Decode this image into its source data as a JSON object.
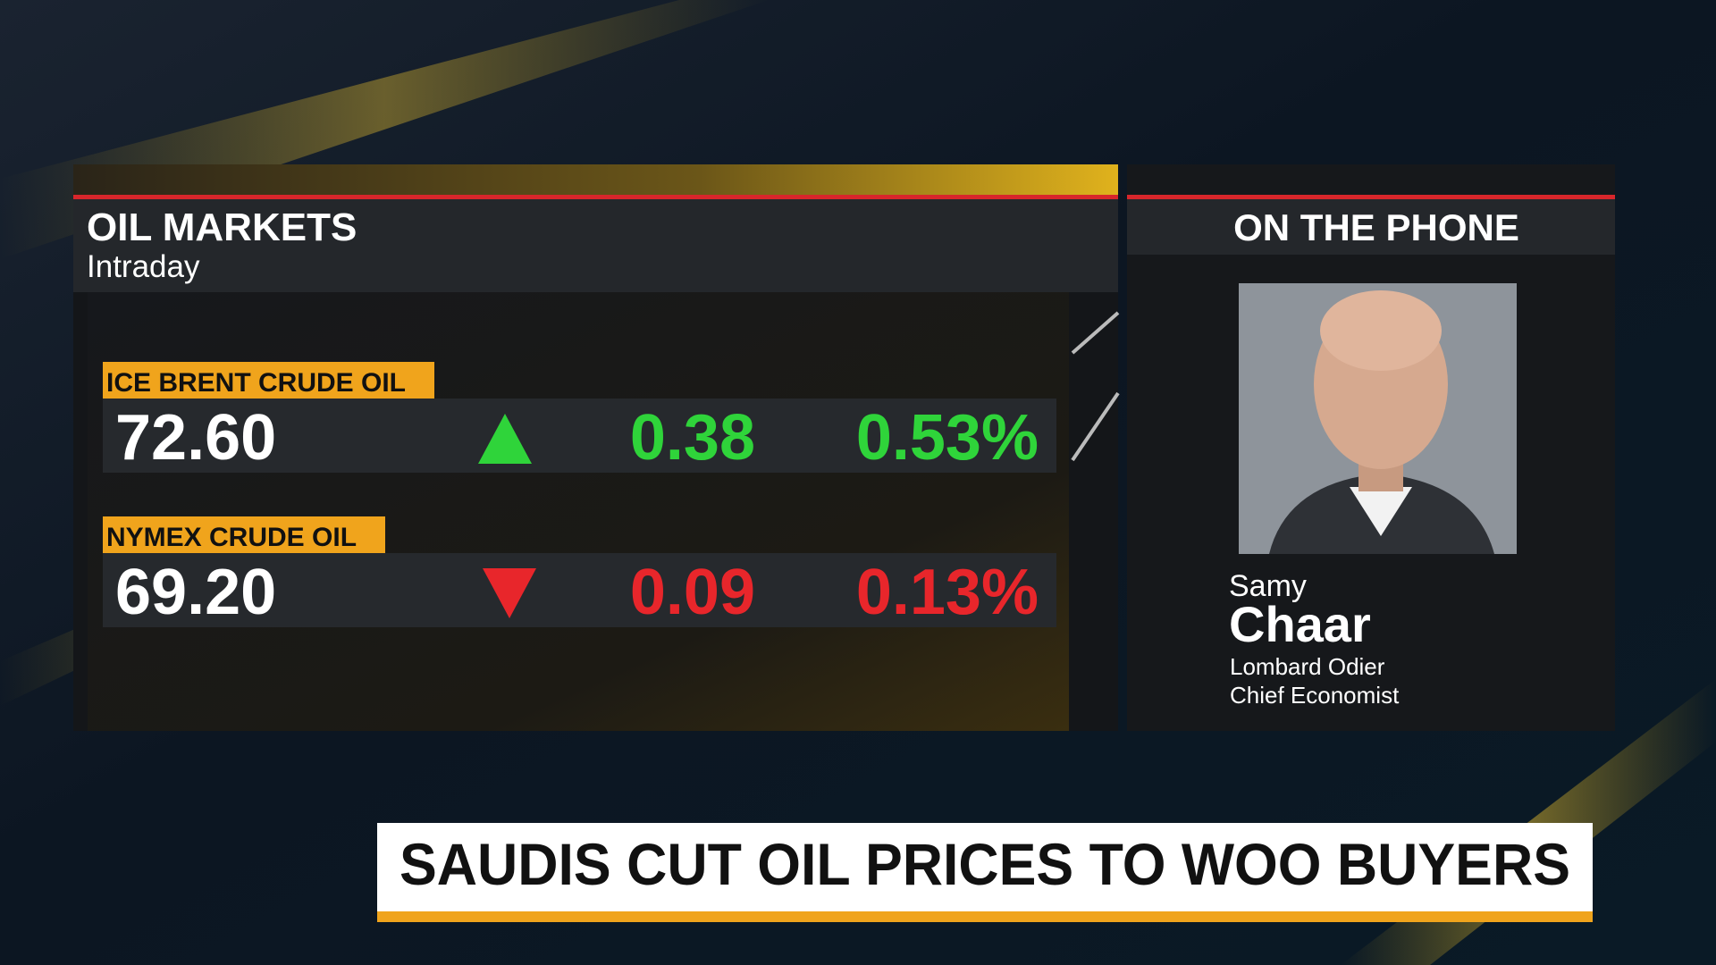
{
  "panel": {
    "title": "OIL MARKETS",
    "subtitle": "Intraday"
  },
  "quotes": [
    {
      "name": "ICE BRENT CRUDE OIL",
      "price": "72.60",
      "change": "0.38",
      "percent": "0.53%",
      "direction": "up"
    },
    {
      "name": "NYMEX CRUDE OIL",
      "price": "69.20",
      "change": "0.09",
      "percent": "0.13%",
      "direction": "down"
    }
  ],
  "guest": {
    "label": "ON THE PHONE",
    "first_name": "Samy",
    "last_name": "Chaar",
    "organization": "Lombard Odier",
    "role": "Chief Economist"
  },
  "headline": "SAUDIS CUT OIL PRICES TO WOO BUYERS"
}
